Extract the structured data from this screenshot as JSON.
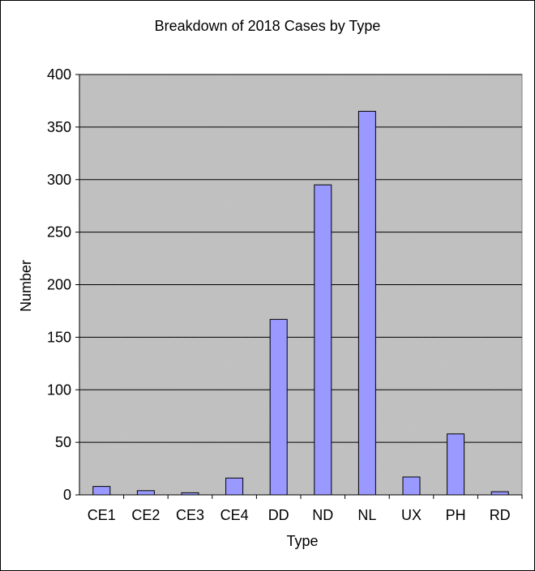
{
  "chart_data": {
    "type": "bar",
    "title": "Breakdown of 2018 Cases by Type",
    "xlabel": "Type",
    "ylabel": "Number",
    "categories": [
      "CE1",
      "CE2",
      "CE3",
      "CE4",
      "DD",
      "ND",
      "NL",
      "UX",
      "PH",
      "RD"
    ],
    "values": [
      8,
      4,
      2,
      16,
      167,
      295,
      365,
      17,
      58,
      3
    ],
    "ylim": [
      0,
      400
    ],
    "yticks": [
      0,
      50,
      100,
      150,
      200,
      250,
      300,
      350,
      400
    ],
    "grid": true,
    "legend": "none"
  },
  "colors": {
    "bar_fill": "#9999ff",
    "bar_stroke": "#000000",
    "plot_background": "#c0c0c0",
    "gridline": "#000000"
  }
}
